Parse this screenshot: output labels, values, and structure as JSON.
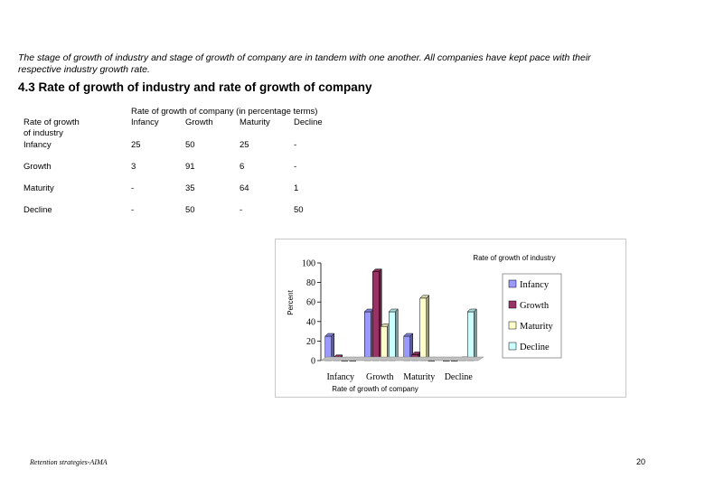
{
  "intro_text": "The stage of growth of industry and stage of growth of company are in tandem with one another. All companies have kept pace with their respective industry growth rate.",
  "heading": "4.3 Rate of growth of industry and rate of growth of company",
  "table": {
    "row_header_line1": "Rate of growth",
    "row_header_line2": "of industry",
    "col_group_header": "Rate of growth of company (in percentage terms)",
    "columns": [
      "Infancy",
      "Growth",
      "Maturity",
      "Decline"
    ],
    "rows": [
      {
        "label": "Infancy",
        "cells": [
          "25",
          "50",
          "25",
          "-"
        ]
      },
      {
        "label": "Growth",
        "cells": [
          "3",
          "91",
          "6",
          "-"
        ]
      },
      {
        "label": "Maturity",
        "cells": [
          "-",
          "35",
          "64",
          "1"
        ]
      },
      {
        "label": "Decline",
        "cells": [
          "-",
          "50",
          "-",
          "50"
        ]
      }
    ]
  },
  "chart_data": {
    "type": "bar",
    "title": "Rate of growth of industry",
    "xlabel": "Rate of growth of company",
    "ylabel": "Percent",
    "categories": [
      "Infancy",
      "Growth",
      "Maturity",
      "Decline"
    ],
    "ylim": [
      0,
      100
    ],
    "yticks": [
      0,
      20,
      40,
      60,
      80,
      100
    ],
    "legend_position": "right",
    "series": [
      {
        "name": "Infancy",
        "color": "#9999ff",
        "values": [
          25,
          50,
          25,
          0
        ]
      },
      {
        "name": "Growth",
        "color": "#993366",
        "values": [
          3,
          91,
          6,
          0
        ]
      },
      {
        "name": "Maturity",
        "color": "#ffffcc",
        "values": [
          0,
          35,
          64,
          1
        ]
      },
      {
        "name": "Decline",
        "color": "#ccffff",
        "values": [
          0,
          50,
          0,
          50
        ]
      }
    ]
  },
  "footer_left": "Retention strategies-AIMA",
  "page_number": "20"
}
